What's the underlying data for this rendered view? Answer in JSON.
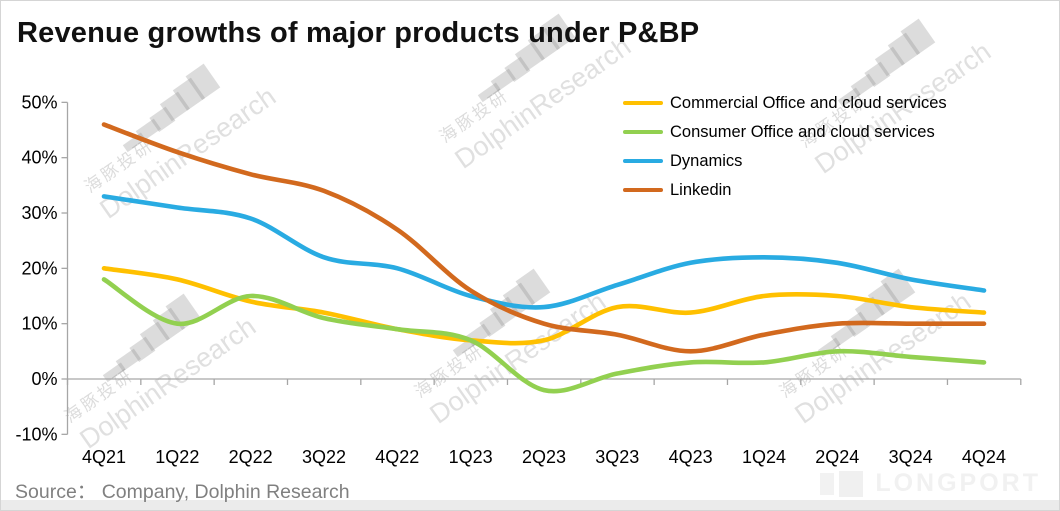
{
  "title": "Revenue growths of major products under P&BP",
  "source": "Source：  Company, Dolphin Research",
  "watermark": {
    "bars": "▂▃▄▅▆▇",
    "cn": "海豚投研",
    "en": "DolphinResearch"
  },
  "longport": {
    "label": "LONGPORT"
  },
  "chart_data": {
    "type": "line",
    "title": "Revenue growths of major products under P&BP",
    "categories": [
      "4Q21",
      "1Q22",
      "2Q22",
      "3Q22",
      "4Q22",
      "1Q23",
      "2Q23",
      "3Q23",
      "4Q23",
      "1Q24",
      "2Q24",
      "3Q24",
      "4Q24"
    ],
    "series": [
      {
        "name": "Commercial Office and cloud services",
        "color": "#FFC000",
        "values": [
          20,
          18,
          14,
          12,
          9,
          7,
          7,
          13,
          12,
          15,
          15,
          13,
          12
        ]
      },
      {
        "name": "Consumer Office and cloud services",
        "color": "#92D050",
        "values": [
          18,
          10,
          15,
          11,
          9,
          7,
          -2,
          1,
          3,
          3,
          5,
          4,
          3
        ]
      },
      {
        "name": "Dynamics",
        "color": "#29ABE2",
        "values": [
          33,
          31,
          29,
          22,
          20,
          15,
          13,
          17,
          21,
          22,
          21,
          18,
          16
        ]
      },
      {
        "name": "Linkedin",
        "color": "#D2691E",
        "values": [
          46,
          41,
          37,
          34,
          27,
          16,
          10,
          8,
          5,
          8,
          10,
          10,
          10
        ]
      }
    ],
    "y_ticks": [
      "50%",
      "40%",
      "30%",
      "20%",
      "10%",
      "0%",
      "-10%"
    ],
    "ylim": [
      -10,
      50
    ],
    "unit": "%",
    "grid": false,
    "smooth": true,
    "legend_position": "top-right"
  }
}
